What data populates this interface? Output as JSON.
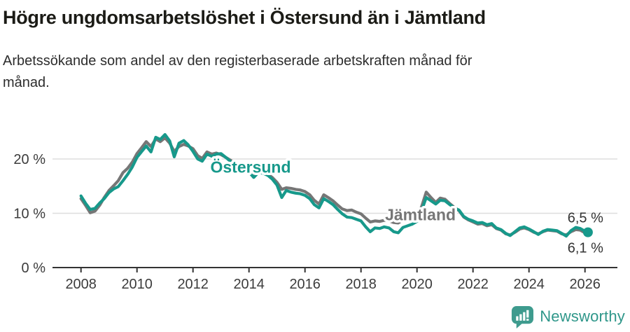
{
  "header": {
    "title": "Högre ungdomsarbetslöshet i Östersund än i Jämtland",
    "subtitle": "Arbetssökande som andel av den registerbaserade arbetskraften månad för månad."
  },
  "footer": {
    "brand": "Newsworthy",
    "logo_icon": "speech-bubble-bar-chart-icon"
  },
  "colors": {
    "ostersund": "#17998b",
    "jamtland": "#767676",
    "axis": "#333333",
    "grid": "#dedede",
    "tick_text": "#3c3c3c",
    "end_label_text": "#333333",
    "background": "#ffffff",
    "logo_teal": "#3e9b8e"
  },
  "chart_data": {
    "type": "line",
    "title": "Högre ungdomsarbetslöshet i Östersund än i Jämtland",
    "subtitle": "Arbetssökande som andel av den registerbaserade arbetskraften månad för månad.",
    "xlabel": "",
    "ylabel": "",
    "grid": "horizontal",
    "legend": "inline-annotations",
    "xlim": [
      2008,
      2027.2
    ],
    "ylim": [
      0,
      29
    ],
    "xticks": [
      2008,
      2010,
      2012,
      2014,
      2016,
      2018,
      2020,
      2022,
      2024,
      2026
    ],
    "yticks": [
      {
        "value": 0,
        "label": "0 %"
      },
      {
        "value": 10,
        "label": "10 %"
      },
      {
        "value": 20,
        "label": "20 %"
      }
    ],
    "x": [
      2008.0,
      2008.17,
      2008.33,
      2008.5,
      2008.67,
      2008.83,
      2009.0,
      2009.17,
      2009.33,
      2009.5,
      2009.67,
      2009.83,
      2010.0,
      2010.17,
      2010.33,
      2010.5,
      2010.67,
      2010.83,
      2011.0,
      2011.17,
      2011.33,
      2011.5,
      2011.67,
      2011.83,
      2012.0,
      2012.17,
      2012.33,
      2012.5,
      2012.67,
      2012.83,
      2013.0,
      2013.17,
      2013.33,
      2013.5,
      2013.67,
      2013.83,
      2014.0,
      2014.17,
      2014.33,
      2014.5,
      2014.67,
      2014.83,
      2015.0,
      2015.17,
      2015.33,
      2015.5,
      2015.67,
      2015.83,
      2016.0,
      2016.17,
      2016.33,
      2016.5,
      2016.67,
      2016.83,
      2017.0,
      2017.17,
      2017.33,
      2017.5,
      2017.67,
      2017.83,
      2018.0,
      2018.17,
      2018.33,
      2018.5,
      2018.67,
      2018.83,
      2019.0,
      2019.17,
      2019.33,
      2019.5,
      2019.67,
      2019.83,
      2020.0,
      2020.17,
      2020.33,
      2020.5,
      2020.67,
      2020.83,
      2021.0,
      2021.17,
      2021.33,
      2021.5,
      2021.67,
      2021.83,
      2022.0,
      2022.17,
      2022.33,
      2022.5,
      2022.67,
      2022.83,
      2023.0,
      2023.17,
      2023.33,
      2023.5,
      2023.67,
      2023.83,
      2024.0,
      2024.17,
      2024.33,
      2024.5,
      2024.67,
      2024.83,
      2025.0,
      2025.17,
      2025.33,
      2025.5,
      2025.67,
      2025.83,
      2026.0,
      2026.08
    ],
    "series": [
      {
        "name": "Östersund",
        "color": "#17998b",
        "end_label": "6,5 %",
        "end_value": 6.5,
        "end_dot": true,
        "values": [
          13.2,
          11.8,
          10.7,
          10.9,
          11.9,
          12.7,
          13.8,
          14.5,
          14.9,
          16.0,
          17.2,
          18.5,
          20.3,
          21.4,
          22.4,
          21.3,
          24.0,
          23.6,
          24.5,
          23.3,
          20.4,
          22.9,
          23.4,
          22.6,
          21.4,
          20.0,
          19.6,
          20.9,
          20.5,
          20.9,
          21.0,
          20.3,
          19.6,
          19.0,
          18.4,
          17.9,
          17.6,
          16.6,
          17.5,
          17.4,
          17.0,
          16.3,
          15.2,
          12.9,
          14.2,
          13.9,
          13.7,
          13.6,
          13.3,
          12.7,
          11.6,
          11.0,
          12.7,
          12.2,
          11.6,
          10.7,
          9.9,
          9.3,
          9.2,
          8.9,
          8.6,
          7.5,
          6.6,
          7.3,
          7.2,
          7.5,
          7.3,
          6.6,
          6.4,
          7.4,
          7.7,
          8.0,
          8.5,
          10.6,
          12.9,
          12.3,
          11.7,
          12.4,
          12.3,
          11.6,
          11.0,
          10.6,
          9.4,
          8.9,
          8.6,
          8.2,
          8.3,
          7.9,
          8.1,
          7.3,
          7.0,
          6.3,
          5.9,
          6.6,
          7.3,
          7.5,
          7.1,
          6.6,
          6.1,
          6.7,
          7.0,
          6.9,
          6.8,
          6.3,
          5.8,
          6.8,
          7.4,
          7.2,
          6.7,
          6.5
        ]
      },
      {
        "name": "Jämtland",
        "color": "#767676",
        "end_label": "6,1 %",
        "end_value": 6.1,
        "end_dot": false,
        "values": [
          12.7,
          11.4,
          10.1,
          10.4,
          11.5,
          12.9,
          14.2,
          15.1,
          16.0,
          17.5,
          18.3,
          19.4,
          21.0,
          22.1,
          23.2,
          22.3,
          23.7,
          23.2,
          23.9,
          22.9,
          21.4,
          22.3,
          22.7,
          22.4,
          21.9,
          20.6,
          20.1,
          21.3,
          20.9,
          21.1,
          20.8,
          20.3,
          19.8,
          19.2,
          18.6,
          18.1,
          17.8,
          17.0,
          17.6,
          17.5,
          17.2,
          16.6,
          15.7,
          14.4,
          14.7,
          14.6,
          14.4,
          14.3,
          14.0,
          13.4,
          12.4,
          11.7,
          13.4,
          12.9,
          12.3,
          11.5,
          10.8,
          10.5,
          10.6,
          10.2,
          9.9,
          9.1,
          8.4,
          8.6,
          8.5,
          8.7,
          8.6,
          8.3,
          8.2,
          8.8,
          9.0,
          9.2,
          9.4,
          11.3,
          13.9,
          12.9,
          12.0,
          12.8,
          12.6,
          11.8,
          11.1,
          10.5,
          9.3,
          8.8,
          8.4,
          8.0,
          8.1,
          7.7,
          7.9,
          7.2,
          6.9,
          6.2,
          6.0,
          6.5,
          7.1,
          7.3,
          7.0,
          6.5,
          6.2,
          6.6,
          6.9,
          6.8,
          6.7,
          6.2,
          6.0,
          6.6,
          7.0,
          6.9,
          6.4,
          6.1
        ]
      }
    ],
    "annotations": [
      {
        "text": "Östersund",
        "x": 2012.62,
        "y": 17.5,
        "color": "#17998b"
      },
      {
        "text": "Jämtland",
        "x": 2018.86,
        "y": 8.7,
        "color": "#767676"
      }
    ]
  }
}
